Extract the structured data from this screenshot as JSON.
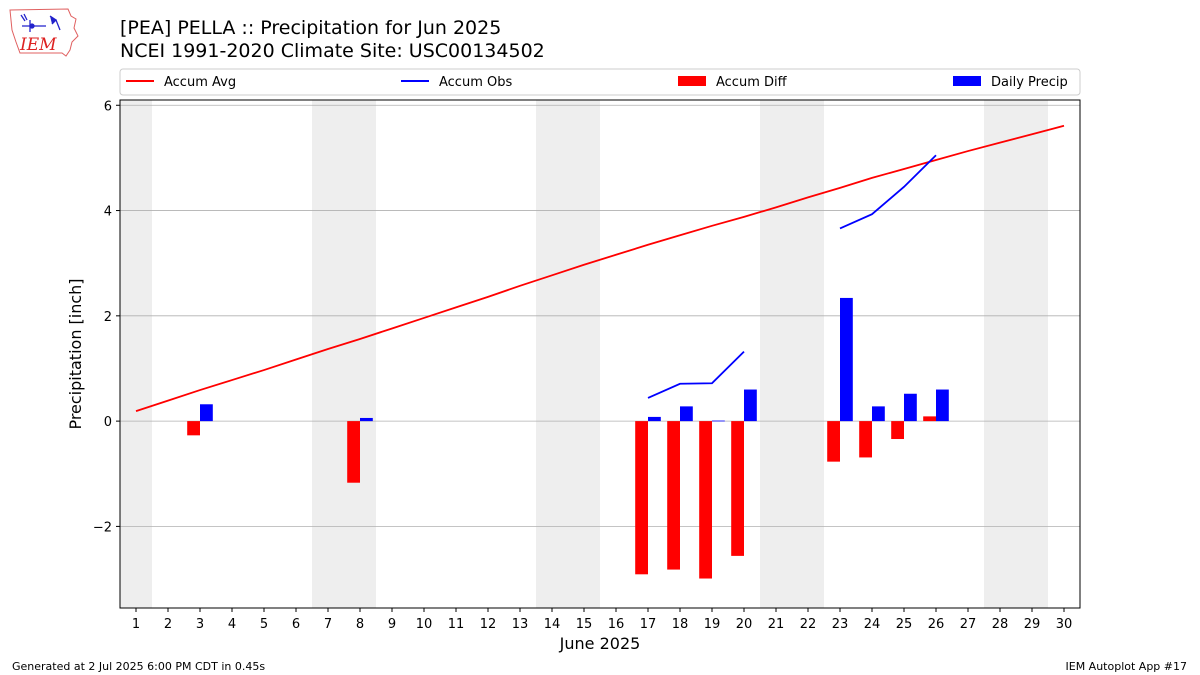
{
  "header": {
    "logo_text": "IEM",
    "title_line1": "[PEA] PELLA :: Precipitation for Jun 2025",
    "title_line2": "NCEI 1991-2020 Climate Site: USC00134502"
  },
  "footer": {
    "left": "Generated at 2 Jul 2025 6:00 PM CDT in 0.45s",
    "right": "IEM Autoplot App #17"
  },
  "colors": {
    "avg": "#ff0000",
    "obs": "#0000ff",
    "diff": "#ff0000",
    "daily": "#0000ff",
    "weekend_band": "#eeeeee",
    "grid": "#b0b0b0"
  },
  "chart_data": {
    "type": "bar",
    "xlabel": "June 2025",
    "ylabel": "Precipitation [inch]",
    "ylim": [
      -3.55,
      6.1
    ],
    "yticks": [
      -2,
      0,
      2,
      4,
      6
    ],
    "ytick_labels": [
      "−2",
      "0",
      "2",
      "4",
      "6"
    ],
    "xlim": [
      0.5,
      30.5
    ],
    "days": [
      1,
      2,
      3,
      4,
      5,
      6,
      7,
      8,
      9,
      10,
      11,
      12,
      13,
      14,
      15,
      16,
      17,
      18,
      19,
      20,
      21,
      22,
      23,
      24,
      25,
      26,
      27,
      28,
      29,
      30
    ],
    "grid": "horizontal",
    "legend_placement": "top",
    "weekend_bands": [
      [
        0.5,
        1.5
      ],
      [
        6.5,
        8.5
      ],
      [
        13.5,
        15.5
      ],
      [
        20.5,
        22.5
      ],
      [
        27.5,
        29.5
      ]
    ],
    "legend": [
      "Accum Avg",
      "Accum Obs",
      "Accum Diff",
      "Daily Precip"
    ],
    "series": [
      {
        "name": "Accum Avg",
        "kind": "line",
        "x": [
          1,
          2,
          3,
          4,
          5,
          6,
          7,
          8,
          9,
          10,
          11,
          12,
          13,
          14,
          15,
          16,
          17,
          18,
          19,
          20,
          21,
          22,
          23,
          24,
          25,
          26,
          27,
          28,
          29,
          30
        ],
        "values": [
          0.19,
          0.39,
          0.59,
          0.78,
          0.97,
          1.17,
          1.37,
          1.56,
          1.76,
          1.96,
          2.16,
          2.36,
          2.57,
          2.77,
          2.97,
          3.16,
          3.35,
          3.53,
          3.71,
          3.88,
          4.06,
          4.25,
          4.43,
          4.62,
          4.79,
          4.96,
          5.13,
          5.29,
          5.45,
          5.61
        ]
      },
      {
        "name": "Accum Obs",
        "kind": "line",
        "segments": [
          {
            "x": [
              17,
              18,
              19,
              20
            ],
            "values": [
              0.44,
              0.71,
              0.72,
              1.32
            ]
          },
          {
            "x": [
              23,
              24,
              25,
              26
            ],
            "values": [
              3.66,
              3.93,
              4.45,
              5.05
            ]
          }
        ]
      },
      {
        "name": "Accum Diff",
        "kind": "bar",
        "x": [
          3,
          8,
          17,
          18,
          19,
          20,
          23,
          24,
          25,
          26
        ],
        "values": [
          -0.27,
          -1.17,
          -2.91,
          -2.82,
          -2.99,
          -2.56,
          -0.77,
          -0.69,
          -0.34,
          0.09
        ]
      },
      {
        "name": "Daily Precip",
        "kind": "bar",
        "x": [
          3,
          8,
          17,
          18,
          19,
          20,
          23,
          24,
          25,
          26
        ],
        "values": [
          0.32,
          0.06,
          0.08,
          0.28,
          0.01,
          0.6,
          2.34,
          0.28,
          0.52,
          0.6
        ]
      }
    ]
  }
}
